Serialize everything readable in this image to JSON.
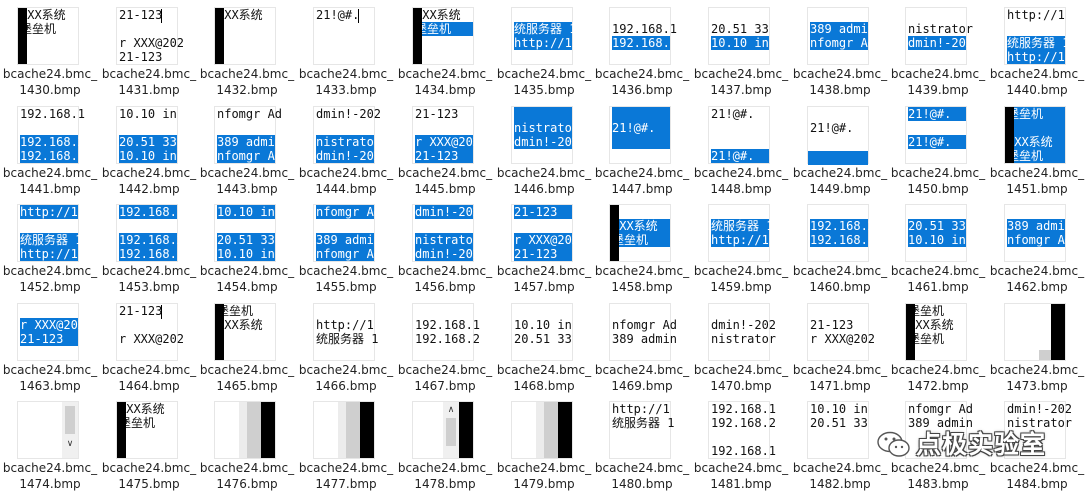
{
  "accent_color": "#0a78d7",
  "files": [
    {
      "line1": "bcache24.bmc_",
      "line2": "1430.bmp",
      "thumb": {
        "lines": [
          {
            "t": "XXX系统",
            "s": false
          },
          {
            "t": "堡垒机",
            "s": false
          }
        ],
        "blackLeft": true
      }
    },
    {
      "line1": "bcache24.bmc_",
      "line2": "1431.bmp",
      "thumb": {
        "lines": [
          {
            "t": "21-123",
            "s": false
          },
          {
            "t": "",
            "s": false
          },
          {
            "t": "r XXX@202",
            "s": false
          },
          {
            "t": "21-123",
            "s": false
          }
        ],
        "caret": true
      }
    },
    {
      "line1": "bcache24.bmc_",
      "line2": "1432.bmp",
      "thumb": {
        "lines": [
          {
            "t": "XXX系统",
            "s": false
          }
        ],
        "blackLeft": true
      }
    },
    {
      "line1": "bcache24.bmc_",
      "line2": "1433.bmp",
      "thumb": {
        "lines": [
          {
            "t": "21!@#.",
            "s": false
          }
        ],
        "caret": true
      }
    },
    {
      "line1": "bcache24.bmc_",
      "line2": "1434.bmp",
      "thumb": {
        "lines": [
          {
            "t": "XXX系统",
            "s": false
          },
          {
            "t": "堡垒机",
            "s": true
          }
        ],
        "blackLeft": true
      }
    },
    {
      "line1": "bcache24.bmc_",
      "line2": "1435.bmp",
      "thumb": {
        "lines": [
          {
            "t": "",
            "s": false
          },
          {
            "t": "统服务器 1",
            "s": true
          },
          {
            "t": "http://1",
            "s": true
          }
        ]
      }
    },
    {
      "line1": "bcache24.bmc_",
      "line2": "1436.bmp",
      "thumb": {
        "lines": [
          {
            "t": "",
            "s": false
          },
          {
            "t": "192.168.1",
            "s": false
          },
          {
            "t": "192.168.1",
            "s": true
          }
        ]
      }
    },
    {
      "line1": "bcache24.bmc_",
      "line2": "1437.bmp",
      "thumb": {
        "lines": [
          {
            "t": "",
            "s": false
          },
          {
            "t": "20.51  33",
            "s": false
          },
          {
            "t": "10.10  in",
            "s": true
          }
        ]
      }
    },
    {
      "line1": "bcache24.bmc_",
      "line2": "1438.bmp",
      "thumb": {
        "lines": [
          {
            "t": "",
            "s": false
          },
          {
            "t": "389 admin",
            "s": true
          },
          {
            "t": "nfomgr Ad",
            "s": true
          }
        ]
      }
    },
    {
      "line1": "bcache24.bmc_",
      "line2": "1439.bmp",
      "thumb": {
        "lines": [
          {
            "t": "",
            "s": false
          },
          {
            "t": "nistrator",
            "s": false
          },
          {
            "t": "dmin!-202",
            "s": true
          }
        ]
      }
    },
    {
      "line1": "bcache24.bmc_",
      "line2": "1440.bmp",
      "thumb": {
        "lines": [
          {
            "t": "http://1",
            "s": false
          },
          {
            "t": "",
            "s": false
          },
          {
            "t": "统服务器 1",
            "s": true
          },
          {
            "t": "http://1",
            "s": true
          }
        ]
      }
    },
    {
      "line1": "bcache24.bmc_",
      "line2": "1441.bmp",
      "thumb": {
        "lines": [
          {
            "t": "192.168.1",
            "s": false
          },
          {
            "t": "",
            "s": false
          },
          {
            "t": "192.168.2",
            "s": true
          },
          {
            "t": "192.168.1",
            "s": true
          }
        ]
      }
    },
    {
      "line1": "bcache24.bmc_",
      "line2": "1442.bmp",
      "thumb": {
        "lines": [
          {
            "t": "10.10  in",
            "s": false
          },
          {
            "t": "",
            "s": false
          },
          {
            "t": "20.51  33",
            "s": true
          },
          {
            "t": "10.10  in",
            "s": true
          }
        ]
      }
    },
    {
      "line1": "bcache24.bmc_",
      "line2": "1443.bmp",
      "thumb": {
        "lines": [
          {
            "t": "nfomgr Ad",
            "s": false
          },
          {
            "t": "",
            "s": false
          },
          {
            "t": "389 admin",
            "s": true
          },
          {
            "t": "nfomgr Ad",
            "s": true
          }
        ]
      }
    },
    {
      "line1": "bcache24.bmc_",
      "line2": "1444.bmp",
      "thumb": {
        "lines": [
          {
            "t": "dmin!-202",
            "s": false
          },
          {
            "t": "",
            "s": false
          },
          {
            "t": "nistrator",
            "s": true
          },
          {
            "t": "dmin!-202",
            "s": true
          }
        ]
      }
    },
    {
      "line1": "bcache24.bmc_",
      "line2": "1445.bmp",
      "thumb": {
        "lines": [
          {
            "t": "21-123",
            "s": false
          },
          {
            "t": "",
            "s": false
          },
          {
            "t": "r XXX@202",
            "s": true
          },
          {
            "t": "21-123",
            "s": true
          }
        ]
      }
    },
    {
      "line1": "bcache24.bmc_",
      "line2": "1446.bmp",
      "thumb": {
        "lines": [
          {
            "t": "",
            "s": true
          },
          {
            "t": "nistrator",
            "s": true
          },
          {
            "t": "dmin!-202",
            "s": true
          }
        ]
      }
    },
    {
      "line1": "bcache24.bmc_",
      "line2": "1447.bmp",
      "thumb": {
        "lines": [
          {
            "t": "",
            "s": true
          },
          {
            "t": "21!@#.",
            "s": true
          },
          {
            "t": "",
            "s": true
          }
        ]
      }
    },
    {
      "line1": "bcache24.bmc_",
      "line2": "1448.bmp",
      "thumb": {
        "lines": [
          {
            "t": "21!@#.",
            "s": false
          },
          {
            "t": "",
            "s": false
          },
          {
            "t": "",
            "s": false
          },
          {
            "t": "21!@#.",
            "s": true
          }
        ]
      }
    },
    {
      "line1": "bcache24.bmc_",
      "line2": "1449.bmp",
      "thumb": {
        "lines": [
          {
            "t": "",
            "s": false
          },
          {
            "t": "21!@#.",
            "s": false
          },
          {
            "t": "",
            "s": false
          }
        ],
        "band": true
      }
    },
    {
      "line1": "bcache24.bmc_",
      "line2": "1450.bmp",
      "thumb": {
        "lines": [
          {
            "t": "21!@#.",
            "s": true
          },
          {
            "t": "",
            "s": false
          },
          {
            "t": "21!@#.",
            "s": true
          }
        ]
      }
    },
    {
      "line1": "bcache24.bmc_",
      "line2": "1451.bmp",
      "thumb": {
        "lines": [
          {
            "t": "堡垒机",
            "s": true
          },
          {
            "t": "",
            "s": true
          },
          {
            "t": "XXX系统",
            "s": true
          },
          {
            "t": "堡垒机",
            "s": true
          }
        ],
        "blackLeft": true
      }
    },
    {
      "line1": "bcache24.bmc_",
      "line2": "1452.bmp",
      "thumb": {
        "lines": [
          {
            "t": "http://1",
            "s": true
          },
          {
            "t": "",
            "s": false
          },
          {
            "t": "统服务器 1",
            "s": true
          },
          {
            "t": "http://1",
            "s": true
          }
        ]
      }
    },
    {
      "line1": "bcache24.bmc_",
      "line2": "1453.bmp",
      "thumb": {
        "lines": [
          {
            "t": "192.168.1",
            "s": true
          },
          {
            "t": "",
            "s": false
          },
          {
            "t": "192.168.2",
            "s": true
          },
          {
            "t": "192.168.1",
            "s": true
          }
        ]
      }
    },
    {
      "line1": "bcache24.bmc_",
      "line2": "1454.bmp",
      "thumb": {
        "lines": [
          {
            "t": "10.10  in",
            "s": true
          },
          {
            "t": "",
            "s": false
          },
          {
            "t": "20.51  33",
            "s": true
          },
          {
            "t": "10.10  in",
            "s": true
          }
        ]
      }
    },
    {
      "line1": "bcache24.bmc_",
      "line2": "1455.bmp",
      "thumb": {
        "lines": [
          {
            "t": "nfomgr Ad",
            "s": true
          },
          {
            "t": "",
            "s": false
          },
          {
            "t": "389 admin",
            "s": true
          },
          {
            "t": "nfomgr Ad",
            "s": true
          }
        ]
      }
    },
    {
      "line1": "bcache24.bmc_",
      "line2": "1456.bmp",
      "thumb": {
        "lines": [
          {
            "t": "dmin!-202",
            "s": true
          },
          {
            "t": "",
            "s": false
          },
          {
            "t": "nistrator",
            "s": true
          },
          {
            "t": "dmin!-202",
            "s": true
          }
        ]
      }
    },
    {
      "line1": "bcache24.bmc_",
      "line2": "1457.bmp",
      "thumb": {
        "lines": [
          {
            "t": "21-123",
            "s": true
          },
          {
            "t": "",
            "s": false
          },
          {
            "t": "r XXX@202",
            "s": true
          },
          {
            "t": "21-123",
            "s": true
          }
        ]
      }
    },
    {
      "line1": "bcache24.bmc_",
      "line2": "1458.bmp",
      "thumb": {
        "lines": [
          {
            "t": "",
            "s": false
          },
          {
            "t": "XXX系统",
            "s": true
          },
          {
            "t": "堡垒机",
            "s": true
          }
        ],
        "blackLeft": true
      }
    },
    {
      "line1": "bcache24.bmc_",
      "line2": "1459.bmp",
      "thumb": {
        "lines": [
          {
            "t": "",
            "s": false
          },
          {
            "t": "统服务器 1",
            "s": true
          },
          {
            "t": "http://1",
            "s": true
          }
        ]
      }
    },
    {
      "line1": "bcache24.bmc_",
      "line2": "1460.bmp",
      "thumb": {
        "lines": [
          {
            "t": "",
            "s": false
          },
          {
            "t": "192.168.2",
            "s": true
          },
          {
            "t": "192.168.1",
            "s": true
          }
        ]
      }
    },
    {
      "line1": "bcache24.bmc_",
      "line2": "1461.bmp",
      "thumb": {
        "lines": [
          {
            "t": "",
            "s": false
          },
          {
            "t": "20.51  33",
            "s": true
          },
          {
            "t": "10.10  in",
            "s": true
          }
        ]
      }
    },
    {
      "line1": "bcache24.bmc_",
      "line2": "1462.bmp",
      "thumb": {
        "lines": [
          {
            "t": "",
            "s": false
          },
          {
            "t": "389 admin",
            "s": true
          },
          {
            "t": "nfomgr Ad",
            "s": true
          }
        ]
      }
    },
    {
      "line1": "bcache24.bmc_",
      "line2": "1463.bmp",
      "thumb": {
        "lines": [
          {
            "t": "",
            "s": false
          },
          {
            "t": "r XXX@202",
            "s": true
          },
          {
            "t": "21-123",
            "s": true
          }
        ]
      }
    },
    {
      "line1": "bcache24.bmc_",
      "line2": "1464.bmp",
      "thumb": {
        "lines": [
          {
            "t": "21-123",
            "s": false
          },
          {
            "t": "",
            "s": false
          },
          {
            "t": "r XXX@202",
            "s": false
          }
        ],
        "caret": true
      }
    },
    {
      "line1": "bcache24.bmc_",
      "line2": "1465.bmp",
      "thumb": {
        "lines": [
          {
            "t": "堡垒机",
            "s": false
          },
          {
            "t": "XXX系统",
            "s": false
          }
        ],
        "blackLeft": true
      }
    },
    {
      "line1": "bcache24.bmc_",
      "line2": "1466.bmp",
      "thumb": {
        "lines": [
          {
            "t": "",
            "s": false
          },
          {
            "t": "http://1",
            "s": false
          },
          {
            "t": "统服务器 1",
            "s": false
          }
        ]
      }
    },
    {
      "line1": "bcache24.bmc_",
      "line2": "1467.bmp",
      "thumb": {
        "lines": [
          {
            "t": "",
            "s": false
          },
          {
            "t": "192.168.1",
            "s": false
          },
          {
            "t": "192.168.2",
            "s": false
          }
        ]
      }
    },
    {
      "line1": "bcache24.bmc_",
      "line2": "1468.bmp",
      "thumb": {
        "lines": [
          {
            "t": "",
            "s": false
          },
          {
            "t": "10.10  in",
            "s": false
          },
          {
            "t": "20.51  33",
            "s": false
          }
        ]
      }
    },
    {
      "line1": "bcache24.bmc_",
      "line2": "1469.bmp",
      "thumb": {
        "lines": [
          {
            "t": "",
            "s": false
          },
          {
            "t": "nfomgr Ad",
            "s": false
          },
          {
            "t": "389 admin",
            "s": false
          }
        ]
      }
    },
    {
      "line1": "bcache24.bmc_",
      "line2": "1470.bmp",
      "thumb": {
        "lines": [
          {
            "t": "",
            "s": false
          },
          {
            "t": "dmin!-202",
            "s": false
          },
          {
            "t": "nistrator",
            "s": false
          }
        ]
      }
    },
    {
      "line1": "bcache24.bmc_",
      "line2": "1471.bmp",
      "thumb": {
        "lines": [
          {
            "t": "",
            "s": false
          },
          {
            "t": "21-123",
            "s": false
          },
          {
            "t": "r XXX@202",
            "s": false
          }
        ]
      }
    },
    {
      "line1": "bcache24.bmc_",
      "line2": "1472.bmp",
      "thumb": {
        "lines": [
          {
            "t": "堡垒机",
            "s": false
          },
          {
            "t": "XXX系统",
            "s": false
          },
          {
            "t": "堡垒机",
            "s": false
          }
        ],
        "blackLeft": true
      }
    },
    {
      "line1": "bcache24.bmc_",
      "line2": "1473.bmp",
      "thumb": {
        "lines": [],
        "blackRight": true,
        "grayBlock": true
      }
    },
    {
      "line1": "bcache24.bmc_",
      "line2": "1474.bmp",
      "thumb": {
        "lines": [],
        "scrollbar": "down"
      }
    },
    {
      "line1": "bcache24.bmc_",
      "line2": "1475.bmp",
      "thumb": {
        "lines": [
          {
            "t": "XXX系统",
            "s": false
          },
          {
            "t": "堡垒机",
            "s": false
          }
        ],
        "blackLeft": true
      }
    },
    {
      "line1": "bcache24.bmc_",
      "line2": "1476.bmp",
      "thumb": {
        "lines": [],
        "blackRight": true,
        "grayStrip": true
      }
    },
    {
      "line1": "bcache24.bmc_",
      "line2": "1477.bmp",
      "thumb": {
        "lines": [],
        "blackRight": true,
        "grayStrip": true
      }
    },
    {
      "line1": "bcache24.bmc_",
      "line2": "1478.bmp",
      "thumb": {
        "lines": [],
        "scrollbar": "up",
        "blackRight": true
      }
    },
    {
      "line1": "bcache24.bmc_",
      "line2": "1479.bmp",
      "thumb": {
        "lines": [],
        "blackRight": true,
        "grayStrip": true
      }
    },
    {
      "line1": "bcache24.bmc_",
      "line2": "1480.bmp",
      "thumb": {
        "lines": [
          {
            "t": "http://1",
            "s": false
          },
          {
            "t": "统服务器 1",
            "s": false
          }
        ]
      }
    },
    {
      "line1": "bcache24.bmc_",
      "line2": "1481.bmp",
      "thumb": {
        "lines": [
          {
            "t": "192.168.1",
            "s": false
          },
          {
            "t": "192.168.2",
            "s": false
          },
          {
            "t": "",
            "s": false
          },
          {
            "t": "192.168.1",
            "s": false
          }
        ]
      }
    },
    {
      "line1": "bcache24.bmc_",
      "line2": "1482.bmp",
      "thumb": {
        "lines": [
          {
            "t": "10.10  in",
            "s": false
          },
          {
            "t": "20.51  33",
            "s": false
          }
        ]
      }
    },
    {
      "line1": "bcache24.bmc_",
      "line2": "1483.bmp",
      "thumb": {
        "lines": [
          {
            "t": "nfomgr Ad",
            "s": false
          },
          {
            "t": "389 admin",
            "s": false
          }
        ]
      }
    },
    {
      "line1": "bcache24.bmc_",
      "line2": "1484.bmp",
      "thumb": {
        "lines": [
          {
            "t": "dmin!-202",
            "s": false
          },
          {
            "t": "nistrator",
            "s": false
          }
        ]
      }
    }
  ],
  "watermark": {
    "text": "点极实验室",
    "icon": "wechat-icon"
  }
}
